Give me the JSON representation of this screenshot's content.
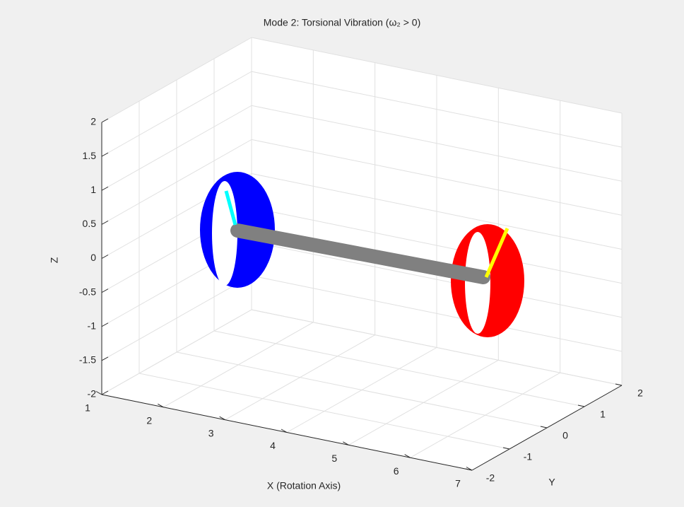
{
  "chart_data": {
    "type": "surface3d",
    "title": "Mode 2: Torsional Vibration (ω₂ > 0)",
    "x_label": "X (Rotation Axis)",
    "y_label": "Y",
    "z_label": "Z",
    "xlim": [
      1,
      7
    ],
    "xticks": [
      1,
      2,
      3,
      4,
      5,
      6,
      7
    ],
    "ylim": [
      -2,
      2
    ],
    "yticks": [
      -2,
      -1,
      0,
      1,
      2
    ],
    "zlim": [
      -2,
      2
    ],
    "zticks": [
      -2,
      -1.5,
      -1,
      -0.5,
      0,
      0.5,
      1,
      1.5,
      2
    ],
    "grid": true
  }
}
